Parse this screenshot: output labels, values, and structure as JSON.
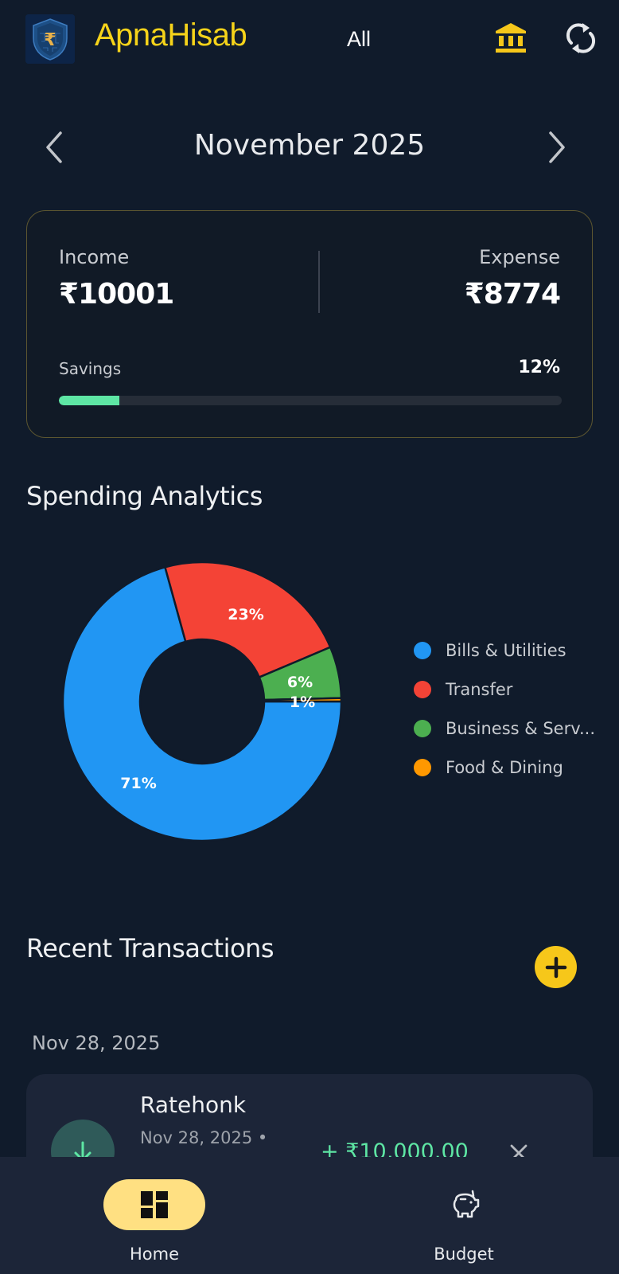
{
  "header": {
    "app_title": "ApnaHisab",
    "logo_icon": "shield-rupee-logo",
    "account_filter": "All",
    "bank_icon": "bank-icon",
    "sync_icon": "sync-icon"
  },
  "month_nav": {
    "label": "November 2025",
    "prev_icon": "chevron-left-icon",
    "next_icon": "chevron-right-icon"
  },
  "summary": {
    "income_label": "Income",
    "income_value": "₹10001",
    "expense_label": "Expense",
    "expense_value": "₹8774",
    "savings_label": "Savings",
    "savings_pct": "12%",
    "savings_value": 12,
    "savings_color": "#5ee6a4"
  },
  "analytics": {
    "title": "Spending Analytics"
  },
  "chart_data": {
    "type": "pie",
    "title": "Spending Analytics",
    "donut": true,
    "categories": [
      "Bills & Utilities",
      "Transfer",
      "Business & Serv...",
      "Food & Dining"
    ],
    "values": [
      71,
      23,
      6,
      1
    ],
    "labels": [
      "71%",
      "23%",
      "6%",
      "1%"
    ],
    "colors": [
      "#2196f3",
      "#f44336",
      "#4caf50",
      "#ff9800"
    ],
    "legend_position": "right"
  },
  "legend": [
    {
      "label": "Bills & Utilities",
      "color": "#2196f3"
    },
    {
      "label": "Transfer",
      "color": "#f44336"
    },
    {
      "label": "Business & Serv...",
      "color": "#4caf50"
    },
    {
      "label": "Food & Dining",
      "color": "#ff9800"
    }
  ],
  "transactions": {
    "title": "Recent Transactions",
    "add_icon": "plus-icon",
    "groups": [
      {
        "date": "Nov 28, 2025",
        "items": [
          {
            "name": "Ratehonk",
            "date": "Nov 28, 2025 •",
            "amount": "+ ₹10,000.00",
            "type_icon": "arrow-down-icon",
            "delete_icon": "close-icon"
          }
        ]
      }
    ]
  },
  "bottom_nav": {
    "items": [
      {
        "label": "Home",
        "icon": "dashboard-icon",
        "active": true
      },
      {
        "label": "Budget",
        "icon": "piggy-bank-icon",
        "active": false
      }
    ]
  }
}
